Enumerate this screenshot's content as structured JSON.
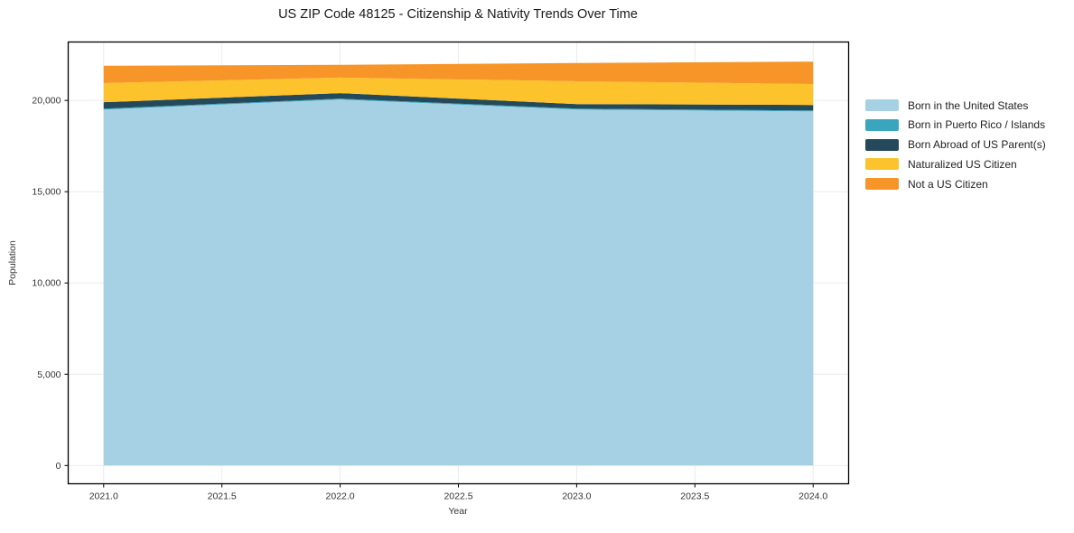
{
  "chart_data": {
    "type": "area",
    "stacked": true,
    "title": "US ZIP Code 48125 - Citizenship & Nativity Trends Over Time",
    "xlabel": "Year",
    "ylabel": "Population",
    "x": [
      2021,
      2022,
      2023,
      2024
    ],
    "series": [
      {
        "name": "Born in the United States",
        "color": "#a6d1e4",
        "values": [
          19500,
          20050,
          19500,
          19400
        ]
      },
      {
        "name": "Born in Puerto Rico / Islands",
        "color": "#3aa6be",
        "values": [
          50,
          50,
          50,
          50
        ]
      },
      {
        "name": "Born Abroad of US Parent(s)",
        "color": "#23495a",
        "values": [
          350,
          300,
          250,
          300
        ]
      },
      {
        "name": "Naturalized US Citizen",
        "color": "#fcc32d",
        "values": [
          1050,
          850,
          1250,
          1150
        ]
      },
      {
        "name": "Not a US Citizen",
        "color": "#f79528",
        "values": [
          950,
          700,
          1000,
          1225
        ]
      }
    ],
    "xlim": [
      2020.85,
      2024.15
    ],
    "ylim": [
      -1000,
      23200
    ],
    "x_ticks": [
      2021.0,
      2021.5,
      2022.0,
      2022.5,
      2023.0,
      2023.5,
      2024.0
    ],
    "y_ticks": [
      0,
      5000,
      10000,
      15000,
      20000
    ],
    "grid": true,
    "grid_color": "#ebebeb",
    "spine_color": "#000000",
    "tick_label_color": "#333333",
    "legend_position": "right-outside"
  }
}
